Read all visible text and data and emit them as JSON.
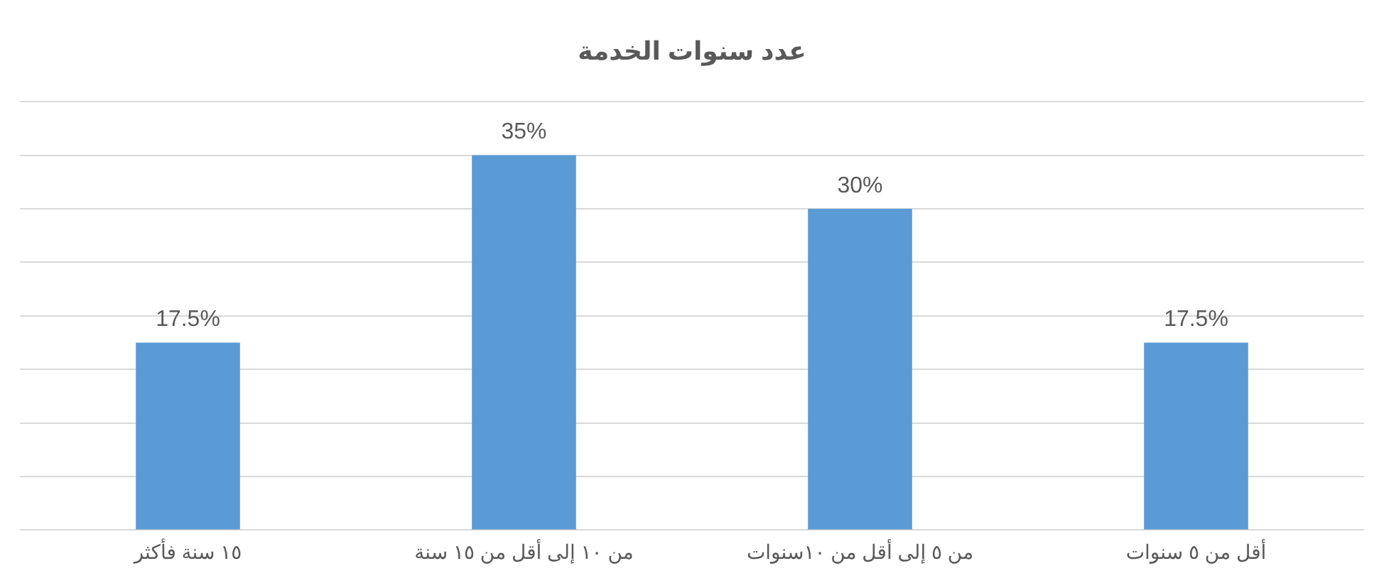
{
  "chart_data": {
    "type": "bar",
    "title": "عدد سنوات الخدمة",
    "categories": [
      "١٥ سنة فأكثر",
      "من ١٠ إلى أقل من ١٥ سنة",
      "من ٥ إلى أقل من ١٠سنوات",
      "أقل من ٥ سنوات"
    ],
    "values": [
      17.5,
      35,
      30,
      17.5
    ],
    "color": "#5b9bd5",
    "value_labels": [
      "17.5%",
      "35%",
      "30%",
      "17.5%"
    ],
    "ylim": [
      0,
      40
    ],
    "yticks": [
      {
        "value": 0,
        "label": null
      },
      {
        "value": 5,
        "label": null
      },
      {
        "value": 10,
        "label": null
      },
      {
        "value": 15,
        "label": null
      },
      {
        "value": 20,
        "label": null
      },
      {
        "value": 25,
        "label": null
      },
      {
        "value": 30,
        "label": null
      },
      {
        "value": 35,
        "label": null
      },
      {
        "value": 40,
        "label": null
      }
    ],
    "tick_labels": "x",
    "grid": "y",
    "legend": false
  }
}
